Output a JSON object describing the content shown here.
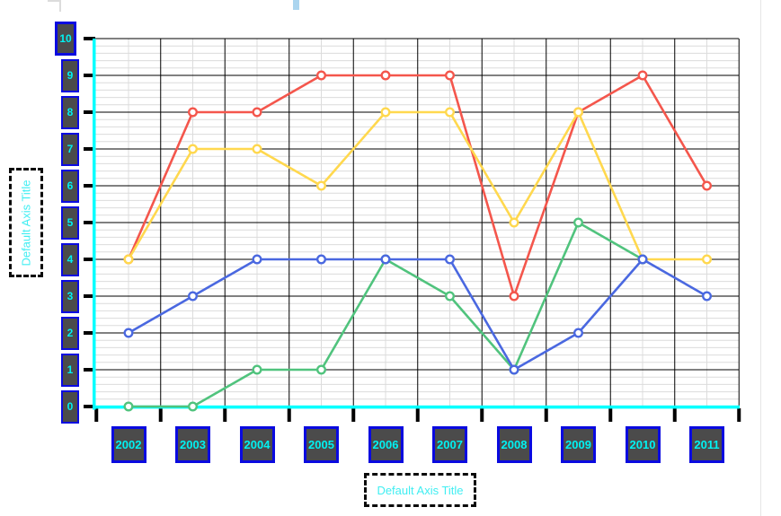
{
  "chart_data": {
    "type": "line",
    "title": "",
    "categories": [
      "2002",
      "2003",
      "2004",
      "2005",
      "2006",
      "2007",
      "2008",
      "2009",
      "2010",
      "2011"
    ],
    "series": [
      {
        "name": "red",
        "color": "#f4564c",
        "values": [
          4,
          8,
          8,
          9,
          9,
          9,
          3,
          8,
          9,
          6
        ]
      },
      {
        "name": "yellow",
        "color": "#ffd84e",
        "values": [
          4,
          7,
          7,
          6,
          8,
          8,
          5,
          8,
          4,
          4
        ]
      },
      {
        "name": "green",
        "color": "#50c37d",
        "values": [
          0,
          0,
          1,
          1,
          4,
          3,
          1,
          5,
          4,
          null
        ]
      },
      {
        "name": "blue",
        "color": "#4a68e0",
        "values": [
          2,
          3,
          4,
          4,
          4,
          4,
          1,
          2,
          4,
          3
        ]
      }
    ],
    "ylim": [
      0,
      10
    ],
    "y_major_step": 1,
    "y_minor_divisions": 5,
    "grid": {
      "major": true,
      "minor": true,
      "major_color": "#000000",
      "minor_color": "#dcdcdc"
    },
    "legend": "none",
    "axis_line_color": "#00ffff",
    "marker": "open-circle"
  },
  "y_axis": {
    "title": "Default Axis Title",
    "tick_labels": [
      "10",
      "9",
      "8",
      "7",
      "6",
      "5",
      "4",
      "3",
      "2",
      "1",
      "0"
    ],
    "selected_tick_label": "10"
  },
  "x_axis": {
    "title": "Default Axis Title",
    "tick_labels": [
      "2002",
      "2003",
      "2004",
      "2005",
      "2006",
      "2007",
      "2008",
      "2009",
      "2010",
      "2011"
    ]
  },
  "styles": {
    "tick_box_fill": "#4b4b4b",
    "tick_box_border": "#0a0ae0",
    "tick_text_color": "#00f2f2",
    "axis_title_color": "#40eef2",
    "selection_dash_color": "#0a0a0a",
    "tick_mark_color": "#000000",
    "title_fragment_color": "#abd5ef",
    "panel_edge_color": "#e6e6e6"
  }
}
